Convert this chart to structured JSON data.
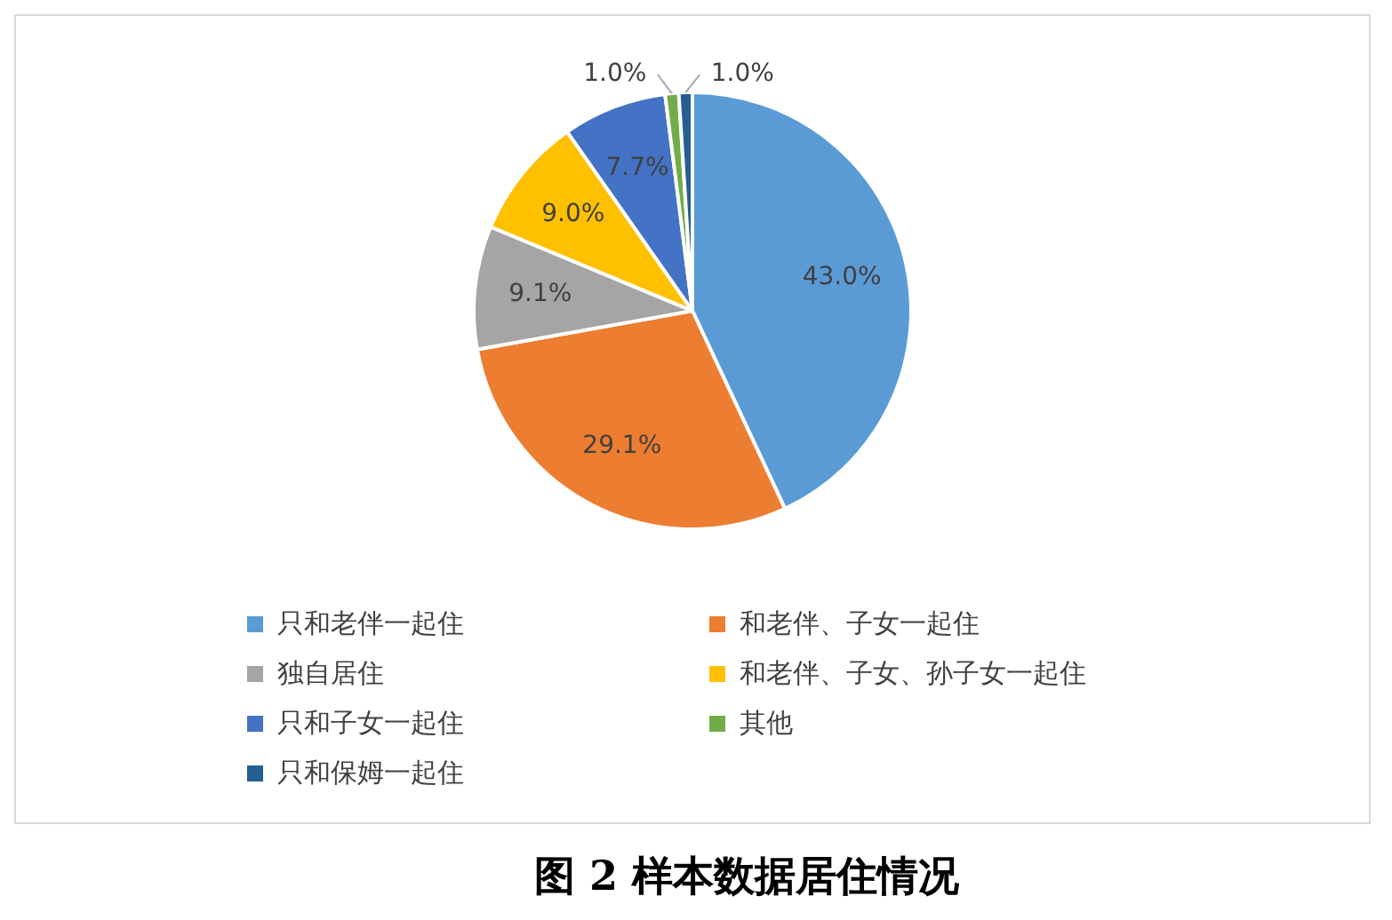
{
  "chart_data": {
    "type": "pie",
    "title": "图 2 样本数据居住情况",
    "categories": [
      "只和老伴一起住",
      "和老伴、子女一起住",
      "独自居住",
      "和老伴、子女、孙子女一起住",
      "只和子女一起住",
      "其他",
      "只和保姆一起住"
    ],
    "values": [
      43.0,
      29.1,
      9.1,
      9.0,
      7.7,
      1.0,
      1.0
    ],
    "colors": [
      "#5b9bd5",
      "#ed7d31",
      "#a5a5a5",
      "#ffc000",
      "#4472c4",
      "#70ad47",
      "#255e91"
    ],
    "value_labels": [
      "43.0%",
      "29.1%",
      "9.1%",
      "9.0%",
      "7.7%",
      "1.0%",
      "1.0%"
    ],
    "legend": "bottom"
  }
}
